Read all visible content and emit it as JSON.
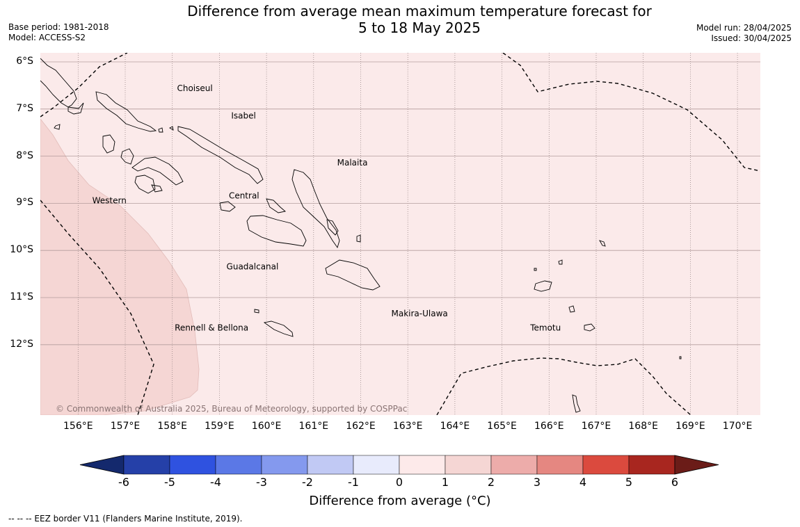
{
  "header": {
    "title_line1": "Difference from average mean maximum temperature forecast for",
    "title_line2": "5 to 18 May 2025",
    "base_period": "Base period: 1981-2018",
    "model": "Model: ACCESS-S2",
    "model_run": "Model run: 28/04/2025",
    "issued": "Issued: 30/04/2025"
  },
  "map": {
    "lat_labels": [
      "6°S",
      "7°S",
      "8°S",
      "9°S",
      "10°S",
      "11°S",
      "12°S"
    ],
    "lon_labels": [
      "156°E",
      "157°E",
      "158°E",
      "159°E",
      "160°E",
      "161°E",
      "162°E",
      "163°E",
      "164°E",
      "165°E",
      "166°E",
      "167°E",
      "168°E",
      "169°E",
      "170°E"
    ],
    "regions": [
      {
        "name": "Choiseul",
        "lon": 158.1,
        "lat": -6.62
      },
      {
        "name": "Isabel",
        "lon": 159.25,
        "lat": -7.2
      },
      {
        "name": "Malaita",
        "lon": 161.5,
        "lat": -8.2
      },
      {
        "name": "Western",
        "lon": 156.3,
        "lat": -9.0
      },
      {
        "name": "Central",
        "lon": 159.2,
        "lat": -8.9
      },
      {
        "name": "Guadalcanal",
        "lon": 159.15,
        "lat": -10.4
      },
      {
        "name": "Makira-Ulawa",
        "lon": 162.65,
        "lat": -11.4
      },
      {
        "name": "Rennell & Bellona",
        "lon": 158.05,
        "lat": -11.7
      },
      {
        "name": "Temotu",
        "lon": 165.6,
        "lat": -11.7
      }
    ],
    "copyright": "© Commonwealth of Australia 2025, Bureau of Meteorology, supported by COSPPac",
    "background_color": "#fbeaea",
    "warm_zone_color": "#f5d6d4"
  },
  "colorbar": {
    "title": "Difference from average (°C)",
    "ticks": [
      "-6",
      "-5",
      "-4",
      "-3",
      "-2",
      "-1",
      "0",
      "1",
      "2",
      "3",
      "4",
      "5",
      "6"
    ],
    "colors": [
      "#2540a8",
      "#2f52e0",
      "#5b78e6",
      "#8499ee",
      "#c1c9f4",
      "#e8ebfc",
      "#fdeaea",
      "#f5d6d4",
      "#edacaa",
      "#e58781",
      "#db4a3e",
      "#a8261f"
    ],
    "under_color": "#14296d",
    "over_color": "#6b1c18"
  },
  "footnote": "--  --  -- EEZ border V11 (Flanders Marine Institute, 2019)."
}
